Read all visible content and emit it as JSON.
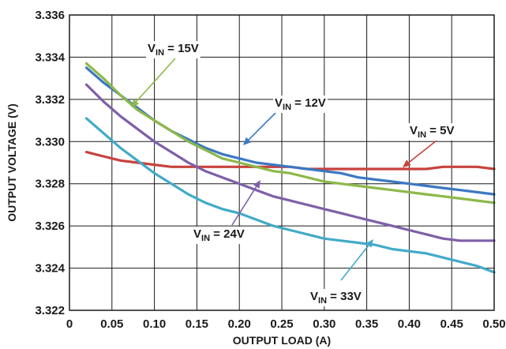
{
  "chart_data": {
    "type": "line",
    "xlabel": "OUTPUT LOAD (A)",
    "ylabel": "OUTPUT VOLTAGE (V)",
    "xlim": [
      0,
      0.5
    ],
    "ylim": [
      3.322,
      3.336
    ],
    "xticks": [
      "0",
      "0.05",
      "0.10",
      "0.15",
      "0.20",
      "0.25",
      "0.30",
      "0.35",
      "0.40",
      "0.45",
      "0.50"
    ],
    "yticks": [
      "3.322",
      "3.324",
      "3.326",
      "3.328",
      "3.330",
      "3.332",
      "3.334",
      "3.336"
    ],
    "grid": true,
    "series": [
      {
        "name": "VIN = 5V",
        "color": "#c8423c",
        "label_main": "V",
        "label_sub": "IN",
        "label_rest": " = 5V",
        "x": [
          0.02,
          0.04,
          0.06,
          0.08,
          0.1,
          0.12,
          0.14,
          0.16,
          0.18,
          0.2,
          0.22,
          0.24,
          0.26,
          0.28,
          0.3,
          0.32,
          0.34,
          0.36,
          0.38,
          0.4,
          0.42,
          0.44,
          0.46,
          0.48,
          0.5
        ],
        "values": [
          3.3295,
          3.3293,
          3.3291,
          3.329,
          3.3289,
          3.3288,
          3.3288,
          3.3288,
          3.3288,
          3.3288,
          3.3288,
          3.3288,
          3.3288,
          3.3287,
          3.3287,
          3.3287,
          3.3287,
          3.3287,
          3.3287,
          3.3287,
          3.3287,
          3.3288,
          3.3288,
          3.3288,
          3.3287
        ]
      },
      {
        "name": "VIN = 12V",
        "color": "#3b78c3",
        "label_main": "V",
        "label_sub": "IN",
        "label_rest": " = 12V",
        "x": [
          0.02,
          0.04,
          0.06,
          0.08,
          0.1,
          0.12,
          0.14,
          0.16,
          0.18,
          0.2,
          0.22,
          0.24,
          0.26,
          0.28,
          0.3,
          0.32,
          0.34,
          0.36,
          0.38,
          0.4,
          0.42,
          0.44,
          0.46,
          0.48,
          0.5
        ],
        "values": [
          3.3335,
          3.3328,
          3.3322,
          3.3316,
          3.331,
          3.3305,
          3.3301,
          3.3297,
          3.3294,
          3.3292,
          3.329,
          3.3289,
          3.3288,
          3.3287,
          3.3286,
          3.3285,
          3.3283,
          3.3282,
          3.3281,
          3.328,
          3.3279,
          3.3278,
          3.3277,
          3.3276,
          3.3275
        ]
      },
      {
        "name": "VIN = 15V",
        "color": "#8db84a",
        "label_main": "V",
        "label_sub": "IN",
        "label_rest": " = 15V",
        "x": [
          0.02,
          0.04,
          0.06,
          0.08,
          0.1,
          0.12,
          0.14,
          0.16,
          0.18,
          0.2,
          0.22,
          0.24,
          0.26,
          0.28,
          0.3,
          0.32,
          0.34,
          0.36,
          0.38,
          0.4,
          0.42,
          0.44,
          0.46,
          0.48,
          0.5
        ],
        "values": [
          3.3337,
          3.333,
          3.3322,
          3.3315,
          3.331,
          3.3305,
          3.33,
          3.3296,
          3.3292,
          3.329,
          3.3288,
          3.3286,
          3.3285,
          3.3283,
          3.3281,
          3.328,
          3.3279,
          3.3278,
          3.3277,
          3.3276,
          3.3275,
          3.3274,
          3.3273,
          3.3272,
          3.3271
        ]
      },
      {
        "name": "VIN = 24V",
        "color": "#7f5fa8",
        "label_main": "V",
        "label_sub": "IN",
        "label_rest": " = 24V",
        "x": [
          0.02,
          0.04,
          0.06,
          0.08,
          0.1,
          0.12,
          0.14,
          0.16,
          0.18,
          0.2,
          0.22,
          0.24,
          0.26,
          0.28,
          0.3,
          0.32,
          0.34,
          0.36,
          0.38,
          0.4,
          0.42,
          0.44,
          0.46,
          0.48,
          0.5
        ],
        "values": [
          3.3327,
          3.3319,
          3.3312,
          3.3306,
          3.33,
          3.3295,
          3.329,
          3.3286,
          3.3283,
          3.328,
          3.3277,
          3.3274,
          3.3272,
          3.327,
          3.3268,
          3.3266,
          3.3264,
          3.3262,
          3.326,
          3.3258,
          3.3256,
          3.3254,
          3.3253,
          3.3253,
          3.3253
        ]
      },
      {
        "name": "VIN = 33V",
        "color": "#42aac8",
        "label_main": "V",
        "label_sub": "IN",
        "label_rest": " = 33V",
        "x": [
          0.02,
          0.04,
          0.06,
          0.08,
          0.1,
          0.12,
          0.14,
          0.16,
          0.18,
          0.2,
          0.22,
          0.24,
          0.26,
          0.28,
          0.3,
          0.32,
          0.34,
          0.36,
          0.38,
          0.4,
          0.42,
          0.44,
          0.46,
          0.48,
          0.5
        ],
        "values": [
          3.3311,
          3.3304,
          3.3297,
          3.3291,
          3.3285,
          3.328,
          3.3275,
          3.3271,
          3.3268,
          3.3266,
          3.3263,
          3.326,
          3.3258,
          3.3256,
          3.3254,
          3.3253,
          3.3252,
          3.3251,
          3.3249,
          3.3248,
          3.3247,
          3.3245,
          3.3243,
          3.3241,
          3.3238
        ]
      }
    ]
  }
}
